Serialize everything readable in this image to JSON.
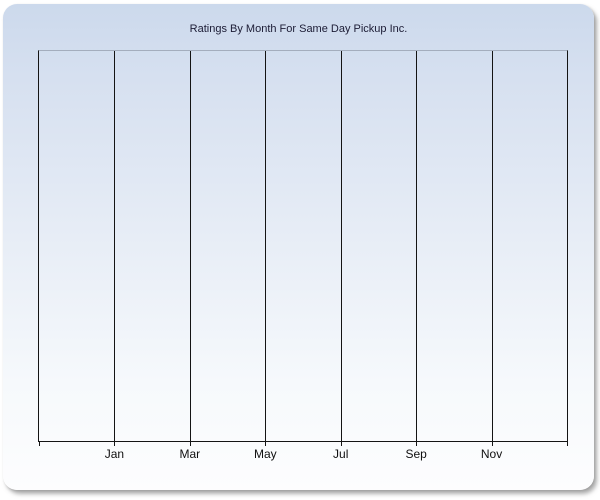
{
  "chart_data": {
    "type": "line",
    "title": "Ratings By Month For Same Day Pickup Inc.",
    "categories": [
      "Jan",
      "Mar",
      "May",
      "Jul",
      "Sep",
      "Nov"
    ],
    "series": [],
    "xlabel": "",
    "ylabel": "",
    "y_tick_labels": [],
    "legend": "none",
    "grid": {
      "vertical": true,
      "horizontal": false
    },
    "x_axis": {
      "interval_count": 7,
      "tick_count": 8,
      "label_gridline_indexes": [
        1,
        2,
        3,
        4,
        5,
        6
      ]
    },
    "colors": {
      "gridline": "#141414",
      "axis_line": "#141414",
      "plot_top_border": "#a4adbd",
      "title_text": "#1c1c35",
      "label_text": "#101010",
      "panel_gradient_top": "#ccd9ec",
      "panel_gradient_bottom": "#fdfdfe"
    }
  }
}
